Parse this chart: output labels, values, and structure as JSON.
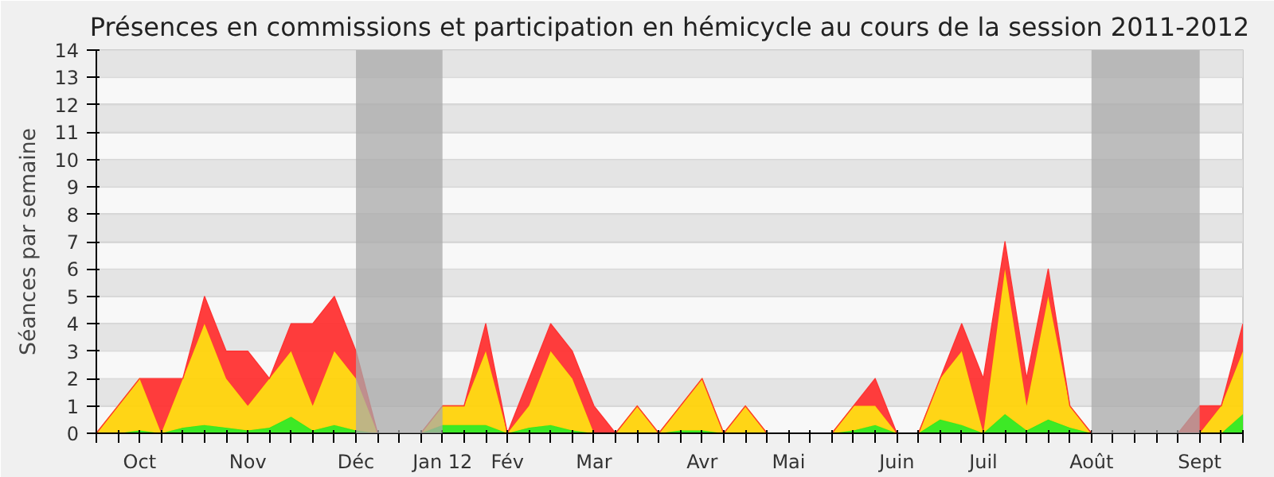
{
  "chart_data": {
    "type": "area",
    "title": "Présences en commissions et participation en hémicycle au cours de la session 2011-2012",
    "ylabel": "Séances par semaine",
    "stacked": true,
    "categories": [
      null,
      null,
      "Oct",
      null,
      null,
      null,
      null,
      "Nov",
      null,
      null,
      null,
      null,
      "Déc",
      null,
      null,
      null,
      "Jan 12",
      null,
      null,
      "Fév",
      null,
      null,
      null,
      "Mar",
      null,
      null,
      null,
      null,
      "Avr",
      null,
      null,
      null,
      "Mai",
      null,
      null,
      null,
      null,
      "Juin",
      null,
      null,
      null,
      "Juil",
      null,
      null,
      null,
      null,
      "Août",
      null,
      null,
      null,
      null,
      "Sept",
      null,
      null
    ],
    "series": [
      {
        "color": "#33e81a",
        "values": [
          0,
          0,
          0.1,
          0,
          0.2,
          0.3,
          0.2,
          0.1,
          0.2,
          0.6,
          0.1,
          0.3,
          0.1,
          0,
          0,
          0,
          0.3,
          0.3,
          0.3,
          0,
          0.2,
          0.3,
          0.1,
          0,
          0,
          0,
          0,
          0.1,
          0.1,
          0,
          0,
          0,
          0,
          0,
          0,
          0.1,
          0.3,
          0,
          0,
          0.5,
          0.3,
          0,
          0.7,
          0.1,
          0.5,
          0.2,
          0,
          0,
          0,
          0,
          0,
          0,
          0,
          0.7
        ]
      },
      {
        "color": "#ffd30a",
        "values": [
          0,
          1,
          1.9,
          0,
          1.8,
          3.7,
          1.8,
          0.9,
          1.8,
          2.4,
          0.9,
          2.7,
          1.9,
          0,
          0,
          0,
          0.7,
          0.7,
          2.7,
          0,
          0.8,
          2.7,
          1.9,
          0,
          0,
          1,
          0,
          0.9,
          1.9,
          0,
          1,
          0,
          0,
          0,
          0,
          0.9,
          0.7,
          0,
          0,
          1.5,
          2.7,
          0,
          5.3,
          0.9,
          4.5,
          0.8,
          0,
          0,
          0,
          0,
          0,
          0,
          1,
          2.3
        ]
      },
      {
        "color": "#ff3333",
        "values": [
          0,
          0,
          0,
          2,
          0,
          1,
          1,
          2,
          0,
          1,
          3,
          2,
          1,
          0,
          0,
          0,
          0,
          0,
          1,
          0,
          1,
          1,
          1,
          1,
          0,
          0,
          0,
          0,
          0,
          0,
          0,
          0,
          0,
          0,
          0,
          0,
          1,
          0,
          0,
          0,
          1,
          2,
          1,
          1,
          1,
          0,
          0,
          0,
          0,
          0,
          0,
          1,
          0,
          1
        ]
      }
    ],
    "ylim": [
      0,
      14
    ],
    "yticks": [
      0,
      1,
      2,
      3,
      4,
      5,
      6,
      7,
      8,
      9,
      10,
      11,
      12,
      13,
      14
    ],
    "bands": [
      {
        "axis": "x",
        "from": "Déc",
        "to": "Jan 12",
        "color": "#aaaaaa"
      },
      {
        "axis": "x",
        "from": "Août",
        "to": "Sept",
        "color": "#aaaaaa"
      }
    ],
    "grid": "y"
  }
}
